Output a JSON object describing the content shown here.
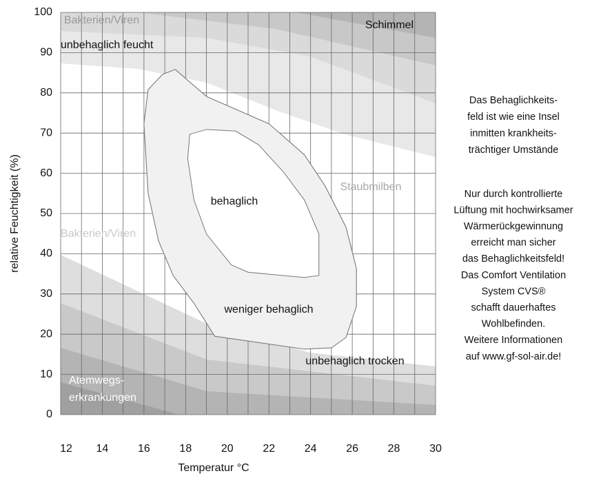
{
  "chart_data": {
    "type": "comfort-diagram",
    "xlabel": "Temperatur °C",
    "ylabel": "relative Feuchtigkeit (%)",
    "xlim": [
      12,
      30
    ],
    "ylim": [
      0,
      100
    ],
    "xticks": [
      12,
      14,
      16,
      18,
      20,
      22,
      24,
      26,
      28,
      30
    ],
    "xminor": [
      13,
      15,
      17,
      19,
      21,
      23,
      25,
      27,
      29
    ],
    "yticks": [
      0,
      10,
      20,
      30,
      40,
      50,
      60,
      70,
      80,
      90,
      100
    ],
    "grid": true,
    "zones": [
      {
        "name": "weniger behaglich",
        "color": "#f1f1f1",
        "x": [
          17.5,
          19.0,
          22.0,
          23.7,
          24.7,
          25.7,
          26.2,
          26.2,
          25.7,
          25.0,
          23.7,
          19.4,
          18.4,
          17.4,
          16.7,
          16.2,
          16.0,
          16.2,
          16.9
        ],
        "y": [
          85.8,
          79.1,
          72.3,
          64.6,
          56.8,
          46.6,
          36.3,
          26.9,
          19.2,
          16.6,
          16.3,
          19.5,
          27.7,
          34.6,
          43.2,
          55.1,
          72.3,
          80.8,
          84.6
        ]
      },
      {
        "name": "behaglich",
        "color": "#ffffff",
        "x": [
          18.2,
          19.0,
          20.4,
          21.5,
          22.7,
          23.7,
          24.4,
          24.4,
          23.7,
          21.0,
          20.2,
          19.0,
          18.4,
          18.1
        ],
        "y": [
          69.7,
          70.9,
          70.5,
          67.1,
          60.3,
          53.4,
          44.9,
          34.6,
          34.1,
          35.4,
          37.2,
          44.9,
          53.4,
          63.7
        ]
      }
    ],
    "annotations": [
      {
        "text": "Bakterien/Viren",
        "color": "#9a9a9a"
      },
      {
        "text": "Schimmel",
        "color": "#111111"
      },
      {
        "text": "unbehaglich feucht",
        "color": "#111111"
      },
      {
        "text": "behaglich",
        "color": "#111111"
      },
      {
        "text": "Staubmilben",
        "color": "#a8a8a8"
      },
      {
        "text": "Bakterien/Viren",
        "color": "#c8c8c8"
      },
      {
        "text": "weniger behaglich",
        "color": "#111111"
      },
      {
        "text": "unbehaglich trocken",
        "color": "#111111"
      },
      {
        "text": "Atemwegs-",
        "color": "#ffffff"
      },
      {
        "text": "erkrankungen",
        "color": "#ffffff"
      }
    ],
    "side_text": [
      [
        "Das Behaglichkeits-",
        "feld ist wie eine Insel",
        "inmitten krankheits-",
        "trächtiger Umstände"
      ],
      [
        "Nur durch kontrollierte",
        "Lüftung mit hochwirksamer",
        "Wärmerückgewinnung",
        "erreicht man sicher",
        "das Behaglichkeitsfeld!",
        "Das Comfort Ventilation",
        "System CVS®",
        "schafft dauerhaftes",
        "Wohlbefinden.",
        "Weitere Informationen",
        "auf www.gf-sol-air.de!"
      ]
    ]
  }
}
